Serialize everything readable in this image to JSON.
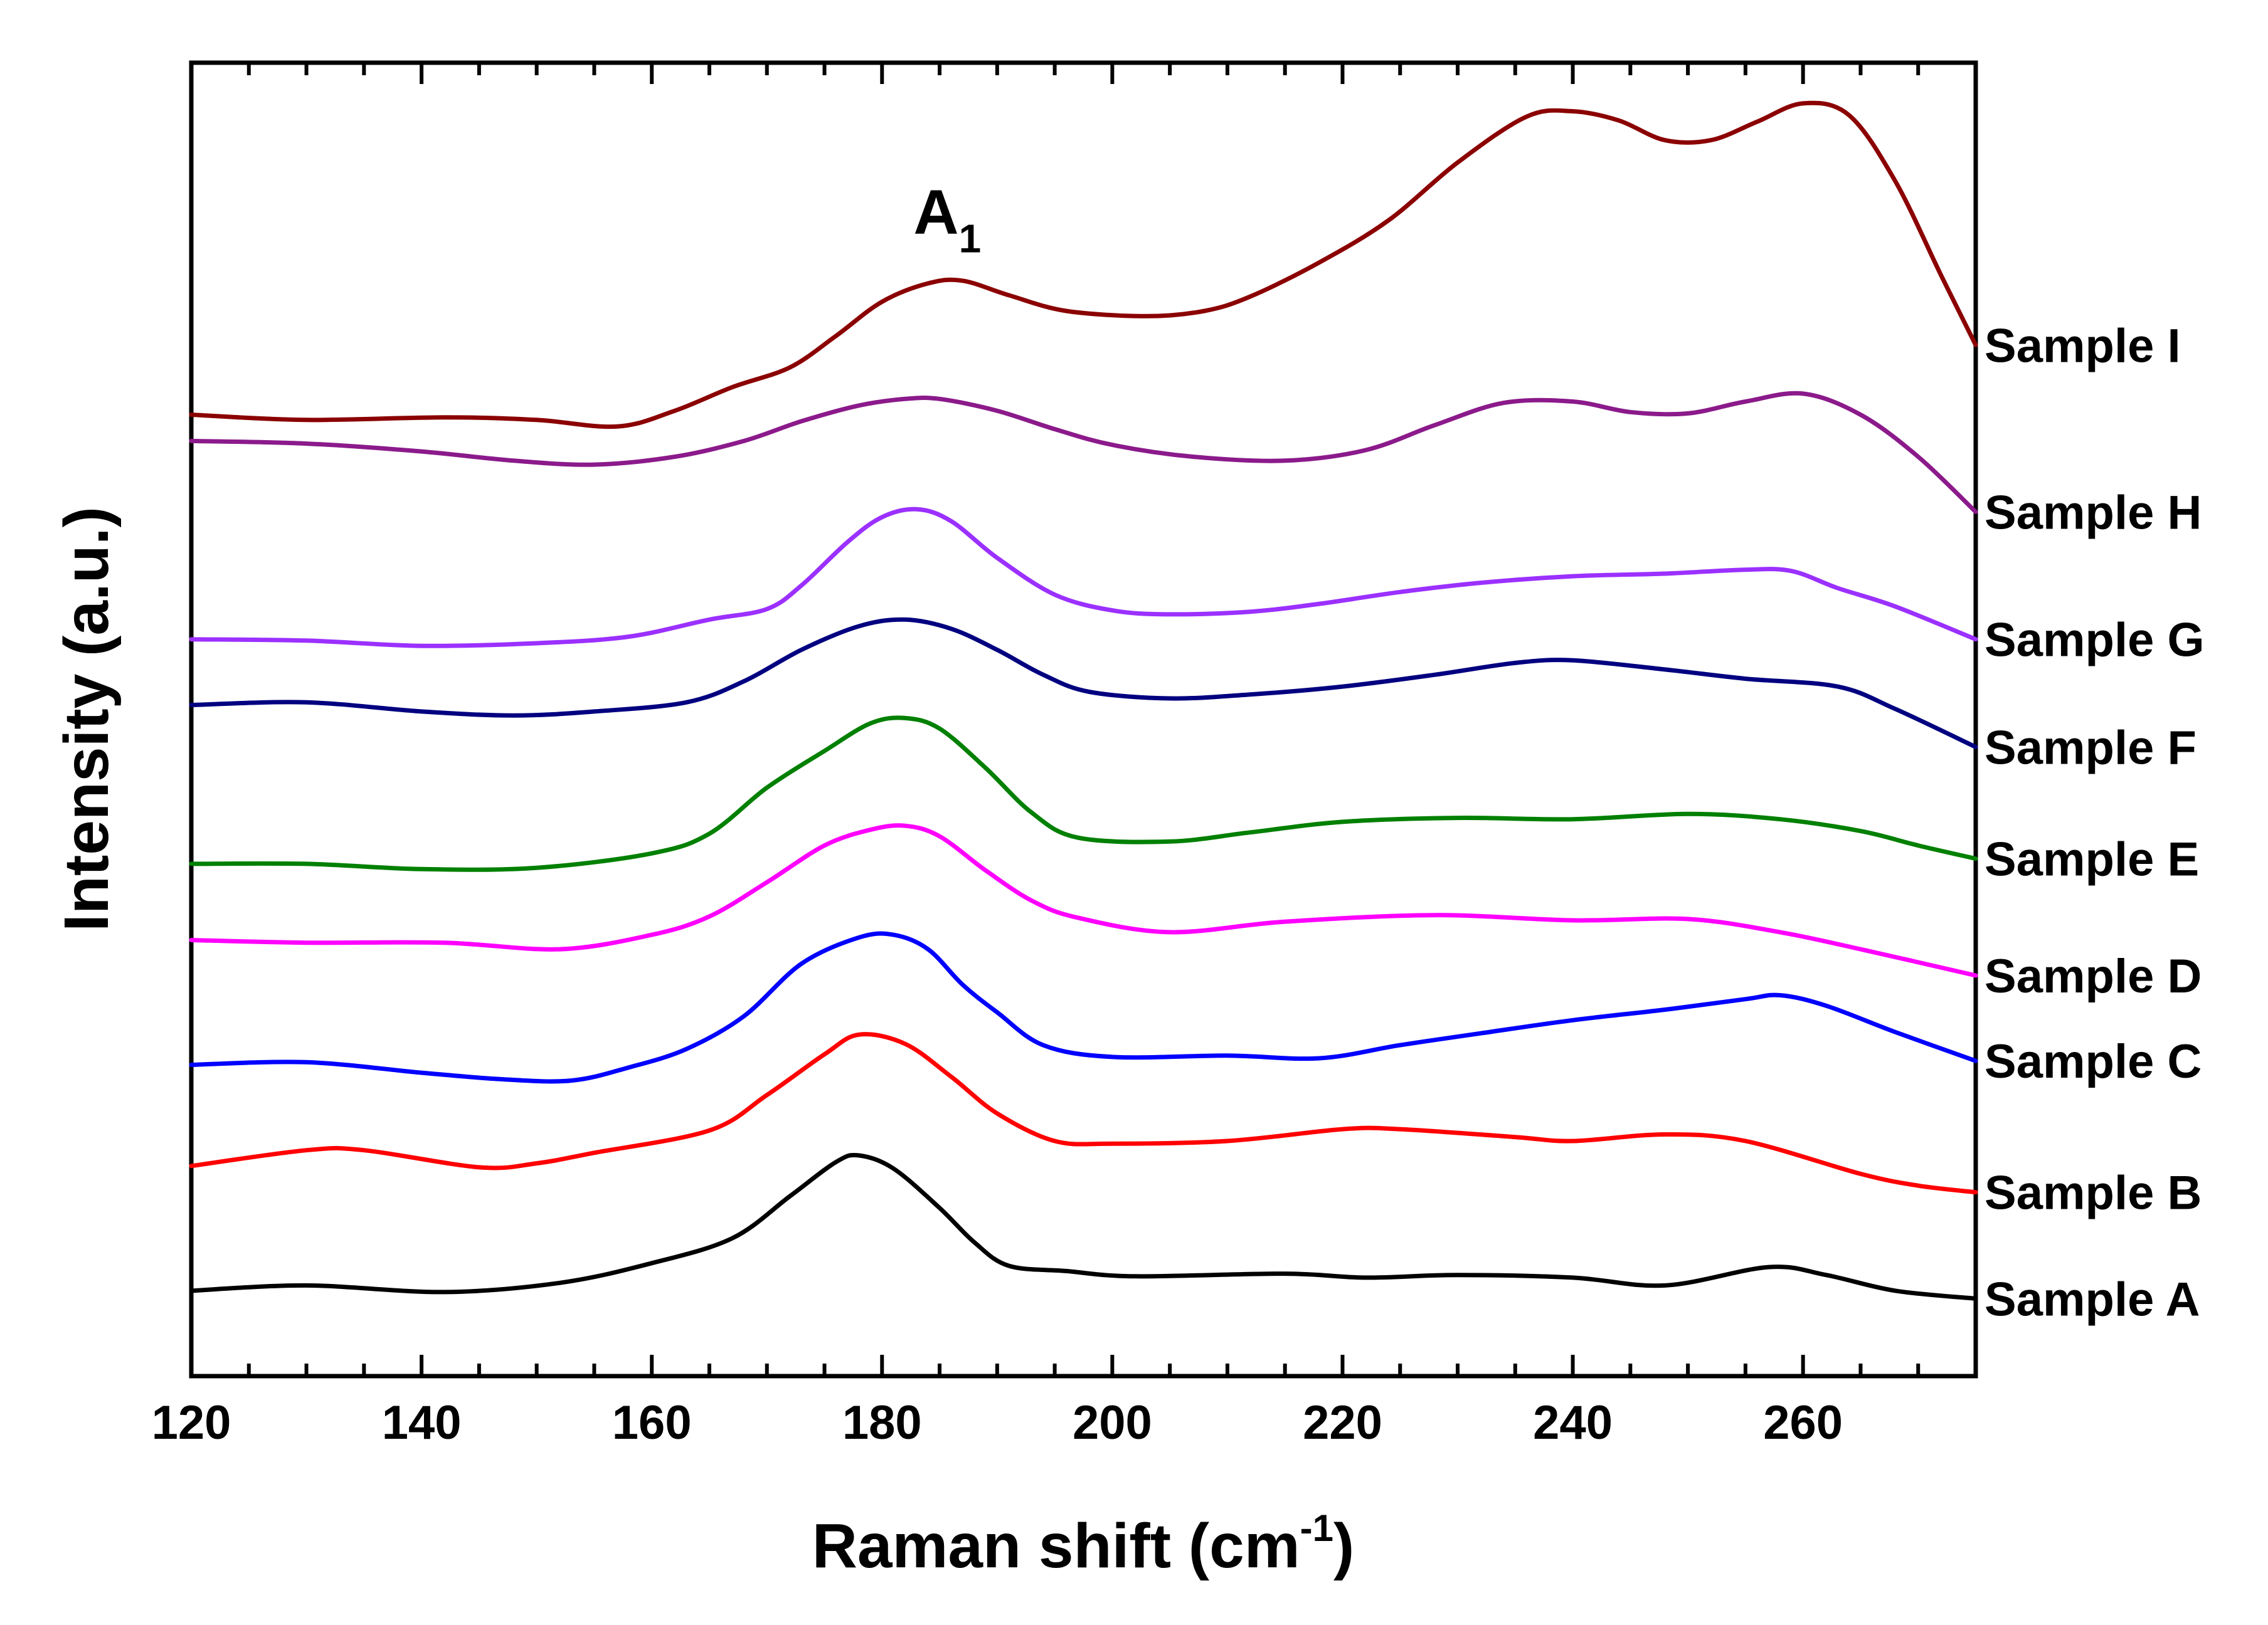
{
  "chart_data": {
    "type": "line",
    "title": "",
    "xlabel": "Raman shift (cm",
    "xlabel_sup": "-1",
    "xlabel_end": ")",
    "ylabel": "Intensity (a.u.)",
    "xlim": [
      120,
      275
    ],
    "ylim": [
      0,
      100
    ],
    "x_ticks": [
      120,
      140,
      160,
      180,
      200,
      220,
      240,
      260
    ],
    "grid": false,
    "y_tick_labels": false,
    "annotation": {
      "text": "A",
      "subscript": "1",
      "x": 186,
      "y": 87
    },
    "series": [
      {
        "name": "Sample A",
        "color": "#000000",
        "points": [
          [
            120,
            6.5
          ],
          [
            130,
            6.9
          ],
          [
            142,
            6.4
          ],
          [
            152,
            7.1
          ],
          [
            160,
            8.6
          ],
          [
            167,
            10.5
          ],
          [
            172,
            13.7
          ],
          [
            176,
            16.3
          ],
          [
            178,
            16.8
          ],
          [
            181,
            15.8
          ],
          [
            185,
            12.8
          ],
          [
            188,
            10.2
          ],
          [
            191,
            8.4
          ],
          [
            196,
            8.0
          ],
          [
            202,
            7.6
          ],
          [
            215,
            7.8
          ],
          [
            222,
            7.5
          ],
          [
            230,
            7.7
          ],
          [
            240,
            7.5
          ],
          [
            248,
            6.9
          ],
          [
            257,
            8.3
          ],
          [
            262,
            7.7
          ],
          [
            268,
            6.5
          ],
          [
            275,
            5.9
          ]
        ]
      },
      {
        "name": "Sample B",
        "color": "#ff0000",
        "points": [
          [
            120,
            16.0
          ],
          [
            130,
            17.2
          ],
          [
            135,
            17.2
          ],
          [
            145,
            15.9
          ],
          [
            150,
            16.2
          ],
          [
            155,
            17.0
          ],
          [
            165,
            18.7
          ],
          [
            170,
            21.4
          ],
          [
            175,
            24.5
          ],
          [
            178,
            26.0
          ],
          [
            182,
            25.3
          ],
          [
            186,
            22.8
          ],
          [
            190,
            20.0
          ],
          [
            195,
            17.9
          ],
          [
            200,
            17.7
          ],
          [
            210,
            17.9
          ],
          [
            220,
            18.8
          ],
          [
            225,
            18.8
          ],
          [
            235,
            18.2
          ],
          [
            240,
            17.9
          ],
          [
            248,
            18.4
          ],
          [
            255,
            17.9
          ],
          [
            265,
            15.4
          ],
          [
            270,
            14.5
          ],
          [
            275,
            14.0
          ]
        ]
      },
      {
        "name": "Sample C",
        "color": "#0000ff",
        "points": [
          [
            120,
            23.7
          ],
          [
            130,
            23.9
          ],
          [
            140,
            23.1
          ],
          [
            147,
            22.6
          ],
          [
            153,
            22.5
          ],
          [
            158,
            23.5
          ],
          [
            163,
            24.9
          ],
          [
            168,
            27.4
          ],
          [
            173,
            31.4
          ],
          [
            178,
            33.4
          ],
          [
            181,
            33.6
          ],
          [
            184,
            32.5
          ],
          [
            187,
            29.8
          ],
          [
            190,
            27.7
          ],
          [
            194,
            25.2
          ],
          [
            200,
            24.3
          ],
          [
            210,
            24.4
          ],
          [
            218,
            24.2
          ],
          [
            225,
            25.2
          ],
          [
            232,
            26.1
          ],
          [
            240,
            27.1
          ],
          [
            248,
            27.9
          ],
          [
            255,
            28.7
          ],
          [
            258,
            29.0
          ],
          [
            262,
            28.2
          ],
          [
            268,
            26.2
          ],
          [
            275,
            24.0
          ]
        ]
      },
      {
        "name": "Sample D",
        "color": "#ff00ff",
        "points": [
          [
            120,
            33.2
          ],
          [
            130,
            33.0
          ],
          [
            142,
            33.0
          ],
          [
            152,
            32.5
          ],
          [
            160,
            33.6
          ],
          [
            165,
            35.0
          ],
          [
            170,
            37.6
          ],
          [
            175,
            40.4
          ],
          [
            179,
            41.6
          ],
          [
            182,
            41.9
          ],
          [
            185,
            41.1
          ],
          [
            189,
            38.5
          ],
          [
            193,
            36.2
          ],
          [
            197,
            34.9
          ],
          [
            205,
            33.8
          ],
          [
            215,
            34.6
          ],
          [
            228,
            35.1
          ],
          [
            240,
            34.7
          ],
          [
            250,
            34.8
          ],
          [
            258,
            33.8
          ],
          [
            265,
            32.5
          ],
          [
            275,
            30.5
          ]
        ]
      },
      {
        "name": "Sample E",
        "color": "#008000",
        "points": [
          [
            120,
            39.0
          ],
          [
            130,
            39.0
          ],
          [
            140,
            38.6
          ],
          [
            150,
            38.7
          ],
          [
            160,
            39.8
          ],
          [
            165,
            41.3
          ],
          [
            170,
            44.8
          ],
          [
            175,
            47.6
          ],
          [
            179,
            49.7
          ],
          [
            182,
            50.1
          ],
          [
            185,
            49.3
          ],
          [
            189,
            46.3
          ],
          [
            193,
            42.9
          ],
          [
            197,
            41.0
          ],
          [
            205,
            40.7
          ],
          [
            212,
            41.4
          ],
          [
            220,
            42.2
          ],
          [
            230,
            42.5
          ],
          [
            240,
            42.4
          ],
          [
            250,
            42.8
          ],
          [
            258,
            42.4
          ],
          [
            265,
            41.5
          ],
          [
            270,
            40.4
          ],
          [
            275,
            39.4
          ]
        ]
      },
      {
        "name": "Sample F",
        "color": "#000080",
        "points": [
          [
            120,
            51.1
          ],
          [
            130,
            51.3
          ],
          [
            140,
            50.6
          ],
          [
            148,
            50.3
          ],
          [
            155,
            50.6
          ],
          [
            163,
            51.3
          ],
          [
            168,
            52.9
          ],
          [
            173,
            55.3
          ],
          [
            178,
            57.1
          ],
          [
            182,
            57.6
          ],
          [
            186,
            56.9
          ],
          [
            190,
            55.3
          ],
          [
            194,
            53.4
          ],
          [
            198,
            52.1
          ],
          [
            205,
            51.6
          ],
          [
            212,
            51.9
          ],
          [
            220,
            52.5
          ],
          [
            228,
            53.4
          ],
          [
            235,
            54.3
          ],
          [
            240,
            54.5
          ],
          [
            248,
            53.8
          ],
          [
            255,
            53.1
          ],
          [
            263,
            52.5
          ],
          [
            268,
            50.8
          ],
          [
            275,
            47.9
          ]
        ]
      },
      {
        "name": "Sample G",
        "color": "#9b30ff",
        "points": [
          [
            120,
            56.1
          ],
          [
            130,
            56.0
          ],
          [
            140,
            55.6
          ],
          [
            150,
            55.8
          ],
          [
            158,
            56.3
          ],
          [
            165,
            57.6
          ],
          [
            170,
            58.4
          ],
          [
            173,
            60.2
          ],
          [
            177,
            63.5
          ],
          [
            180,
            65.4
          ],
          [
            183,
            66.0
          ],
          [
            186,
            65.1
          ],
          [
            190,
            62.3
          ],
          [
            195,
            59.5
          ],
          [
            200,
            58.3
          ],
          [
            205,
            58.0
          ],
          [
            212,
            58.2
          ],
          [
            218,
            58.8
          ],
          [
            225,
            59.7
          ],
          [
            232,
            60.4
          ],
          [
            240,
            60.9
          ],
          [
            248,
            61.1
          ],
          [
            255,
            61.4
          ],
          [
            259,
            61.3
          ],
          [
            263,
            60.0
          ],
          [
            268,
            58.6
          ],
          [
            275,
            56.1
          ]
        ]
      },
      {
        "name": "Sample H",
        "color": "#8b1a8b",
        "points": [
          [
            120,
            71.2
          ],
          [
            130,
            71.0
          ],
          [
            140,
            70.4
          ],
          [
            148,
            69.7
          ],
          [
            155,
            69.4
          ],
          [
            162,
            70.0
          ],
          [
            168,
            71.2
          ],
          [
            173,
            72.7
          ],
          [
            178,
            73.9
          ],
          [
            182,
            74.4
          ],
          [
            185,
            74.4
          ],
          [
            190,
            73.5
          ],
          [
            195,
            72.1
          ],
          [
            200,
            70.9
          ],
          [
            207,
            70.0
          ],
          [
            215,
            69.7
          ],
          [
            222,
            70.5
          ],
          [
            228,
            72.4
          ],
          [
            234,
            74.1
          ],
          [
            240,
            74.2
          ],
          [
            245,
            73.4
          ],
          [
            250,
            73.3
          ],
          [
            255,
            74.2
          ],
          [
            260,
            74.8
          ],
          [
            265,
            73.2
          ],
          [
            270,
            70.0
          ],
          [
            275,
            65.8
          ]
        ]
      },
      {
        "name": "Sample I",
        "color": "#8b0000",
        "points": [
          [
            120,
            73.2
          ],
          [
            130,
            72.8
          ],
          [
            142,
            73.0
          ],
          [
            150,
            72.8
          ],
          [
            157,
            72.3
          ],
          [
            162,
            73.5
          ],
          [
            167,
            75.3
          ],
          [
            172,
            76.8
          ],
          [
            176,
            79.2
          ],
          [
            180,
            81.8
          ],
          [
            184,
            83.2
          ],
          [
            187,
            83.4
          ],
          [
            191,
            82.3
          ],
          [
            196,
            81.1
          ],
          [
            203,
            80.7
          ],
          [
            208,
            81.1
          ],
          [
            212,
            82.2
          ],
          [
            218,
            84.8
          ],
          [
            224,
            88.0
          ],
          [
            230,
            92.4
          ],
          [
            236,
            95.9
          ],
          [
            240,
            96.3
          ],
          [
            244,
            95.6
          ],
          [
            248,
            94.1
          ],
          [
            252,
            94.1
          ],
          [
            256,
            95.5
          ],
          [
            260,
            96.9
          ],
          [
            264,
            96.0
          ],
          [
            268,
            91.0
          ],
          [
            272,
            83.8
          ],
          [
            275,
            78.5
          ]
        ]
      }
    ]
  }
}
